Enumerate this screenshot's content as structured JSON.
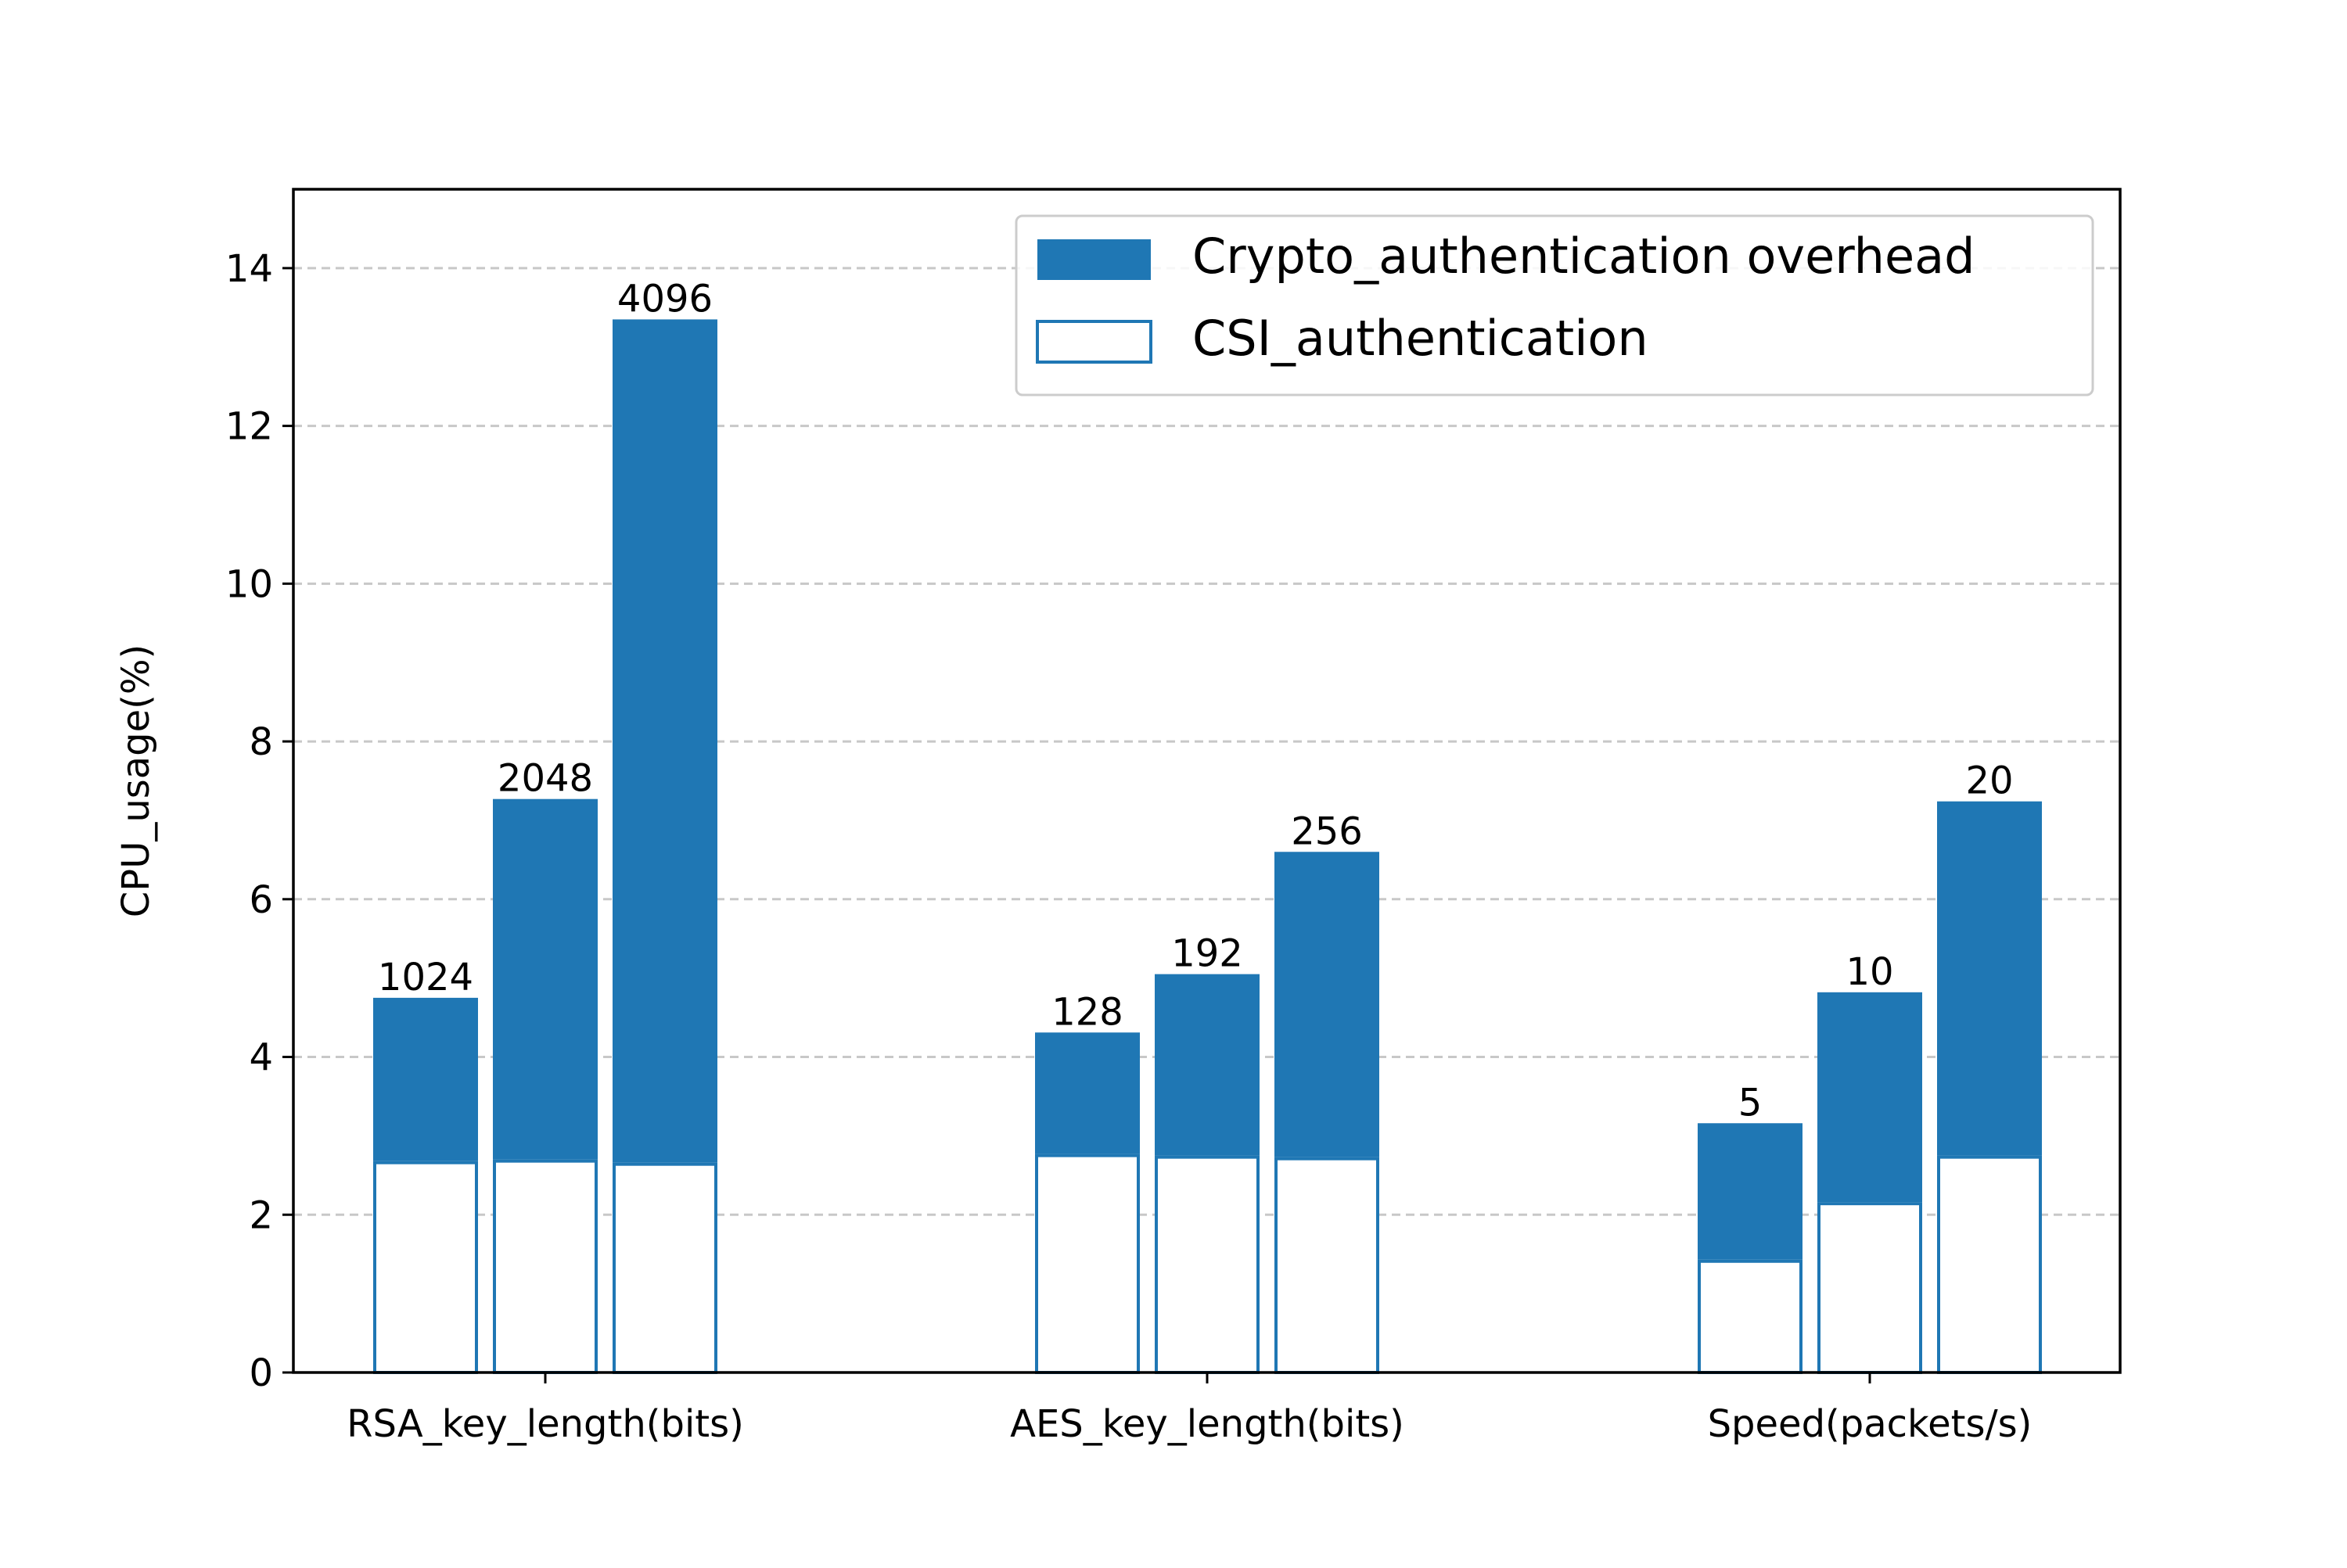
{
  "chart_data": {
    "type": "bar",
    "stacked": true,
    "title": "",
    "xlabel": "",
    "ylabel": "CPU_usage(%)",
    "ylim": [
      0,
      15
    ],
    "yticks": [
      0,
      2,
      4,
      6,
      8,
      10,
      12,
      14
    ],
    "grid": "horizontal dashed",
    "legend_position": "top-right",
    "groups": [
      {
        "label": "RSA_key_length(bits)",
        "bars": [
          {
            "label": "1024",
            "csi": 2.68,
            "total": 4.75
          },
          {
            "label": "2048",
            "csi": 2.7,
            "total": 7.27
          },
          {
            "label": "4096",
            "csi": 2.66,
            "total": 13.35
          }
        ]
      },
      {
        "label": "AES_key_length(bits)",
        "bars": [
          {
            "label": "128",
            "csi": 2.77,
            "total": 4.31
          },
          {
            "label": "192",
            "csi": 2.75,
            "total": 5.05
          },
          {
            "label": "256",
            "csi": 2.73,
            "total": 6.6
          }
        ]
      },
      {
        "label": "Speed(packets/s)",
        "bars": [
          {
            "label": "5",
            "csi": 1.43,
            "total": 3.16
          },
          {
            "label": "10",
            "csi": 2.16,
            "total": 4.82
          },
          {
            "label": "20",
            "csi": 2.75,
            "total": 7.24
          }
        ]
      }
    ],
    "series": [
      {
        "name": "Crypto_authentication overhead",
        "color": "#1f77b4",
        "fill": "solid"
      },
      {
        "name": "CSI_authentication",
        "color": "#1f77b4",
        "fill": "white"
      }
    ]
  }
}
